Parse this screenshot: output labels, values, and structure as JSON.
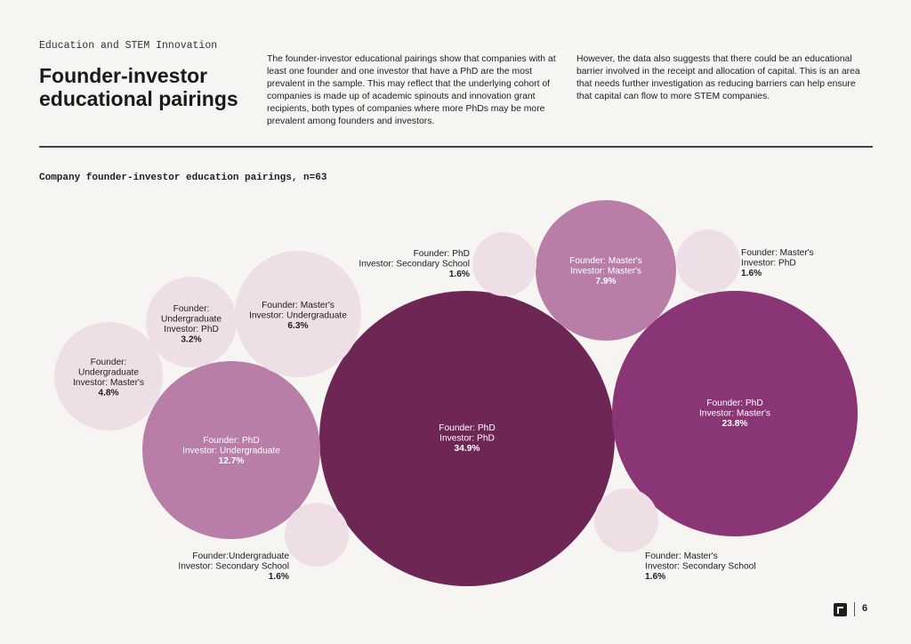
{
  "header": {
    "eyebrow": "Education and STEM Innovation",
    "title_line1": "Founder-investor",
    "title_line2": "educational pairings",
    "paragraph1": "The founder-investor educational pairings show that companies with at least one founder and one investor that have a PhD are the most prevalent in the sample. This may reflect that the underlying cohort of companies is made up of academic spinouts and innovation grant recipients, both types of companies where more PhDs may be more prevalent among founders and investors.",
    "paragraph2": "However, the data also suggests that there could be an educational barrier involved in the receipt and allocation of capital. This is an area that needs further investigation as reducing barriers can help ensure that capital can flow to more STEM companies."
  },
  "chart_data": {
    "type": "bubble",
    "title": "Company founder-investor education pairings, n=63",
    "colors": {
      "darkest": "#6e2755",
      "strong": "#8a3576",
      "mid": "#b87ea8",
      "light": "#eedfe6"
    },
    "bubbles": [
      {
        "lines": [
          "Founder: PhD",
          "Investor: PhD"
        ],
        "value_label": "34.9%",
        "value": 34.9,
        "color": "darkest"
      },
      {
        "lines": [
          "Founder: PhD",
          "Investor: Master's"
        ],
        "value_label": "23.8%",
        "value": 23.8,
        "color": "strong"
      },
      {
        "lines": [
          "Founder: PhD",
          "Investor: Undergraduate"
        ],
        "value_label": "12.7%",
        "value": 12.7,
        "color": "mid"
      },
      {
        "lines": [
          "Founder: Master's",
          "Investor: Master's"
        ],
        "value_label": "7.9%",
        "value": 7.9,
        "color": "mid"
      },
      {
        "lines": [
          "Founder: Master's",
          "Investor: Undergraduate"
        ],
        "value_label": "6.3%",
        "value": 6.3,
        "color": "light"
      },
      {
        "lines": [
          "Founder:",
          "Undergraduate",
          "Investor: Master's"
        ],
        "value_label": "4.8%",
        "value": 4.8,
        "color": "light"
      },
      {
        "lines": [
          "Founder:",
          "Undergraduate",
          "Investor: PhD"
        ],
        "value_label": "3.2%",
        "value": 3.2,
        "color": "light"
      },
      {
        "lines": [
          "Founder: PhD",
          "Investor: Secondary School"
        ],
        "value_label": "1.6%",
        "value": 1.6,
        "color": "light"
      },
      {
        "lines": [
          "Founder: Master's",
          "Investor: PhD"
        ],
        "value_label": "1.6%",
        "value": 1.6,
        "color": "light"
      },
      {
        "lines": [
          "Founder:Undergraduate",
          "Investor: Secondary School"
        ],
        "value_label": "1.6%",
        "value": 1.6,
        "color": "light"
      },
      {
        "lines": [
          "Founder: Master's",
          "Investor: Secondary School"
        ],
        "value_label": "1.6%",
        "value": 1.6,
        "color": "light"
      }
    ]
  },
  "footer": {
    "page_number": "6"
  }
}
